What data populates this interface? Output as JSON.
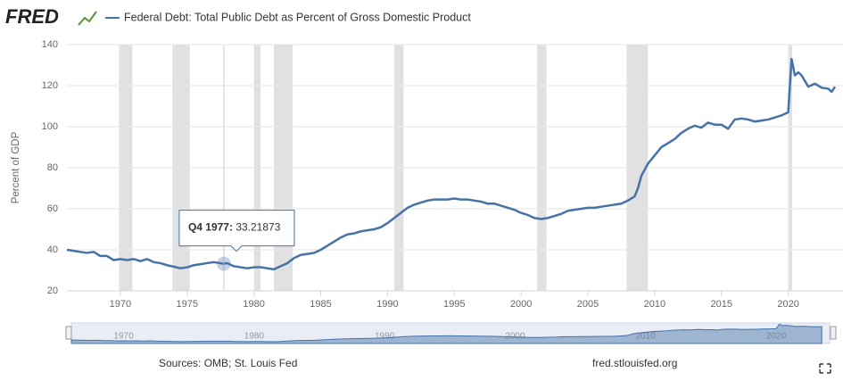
{
  "chart_data": {
    "type": "line",
    "logo": "FRED",
    "title": "Federal Debt: Total Public Debt as Percent of Gross Domestic Product",
    "y_label": "Percent of GDP",
    "sources": "Sources: OMB; St. Louis Fed",
    "site": "fred.stlouisfed.org",
    "xlim": [
      1966,
      2024.1
    ],
    "ylim": [
      20,
      140
    ],
    "yticks": [
      20,
      40,
      60,
      80,
      100,
      120,
      140
    ],
    "xticks": [
      1970,
      1975,
      1980,
      1985,
      1990,
      1995,
      2000,
      2005,
      2010,
      2015,
      2020
    ],
    "navigator_ticks": [
      1970,
      1980,
      1990,
      2000,
      2010,
      2020
    ],
    "grid": true,
    "recession_color": "#e1e1e1",
    "recessions": [
      [
        1969.9,
        1970.9
      ],
      [
        1973.9,
        1975.2
      ],
      [
        1980.0,
        1980.5
      ],
      [
        1981.5,
        1982.9
      ],
      [
        1990.5,
        1991.2
      ],
      [
        2001.2,
        2001.9
      ],
      [
        2007.9,
        2009.5
      ],
      [
        2020.0,
        2020.3
      ]
    ],
    "tooltip": {
      "label": "Q4 1977",
      "x": 1977.75,
      "value": 33.21873
    },
    "series": [
      {
        "name": "Federal Debt: Total Public Debt as Percent of Gross Domestic Product",
        "color": "#4572a7",
        "x": [
          1966,
          1966.5,
          1967,
          1967.5,
          1968,
          1968.5,
          1969,
          1969.5,
          1970,
          1970.5,
          1971,
          1971.5,
          1972,
          1972.5,
          1973,
          1973.5,
          1974,
          1974.5,
          1975,
          1975.5,
          1976,
          1976.5,
          1977,
          1977.75,
          1978,
          1978.5,
          1979,
          1979.5,
          1980,
          1980.5,
          1981,
          1981.5,
          1982,
          1982.5,
          1983,
          1983.5,
          1984,
          1984.5,
          1985,
          1985.5,
          1986,
          1986.5,
          1987,
          1987.5,
          1988,
          1988.5,
          1989,
          1989.5,
          1990,
          1990.5,
          1991,
          1991.5,
          1992,
          1992.5,
          1993,
          1993.5,
          1994,
          1994.5,
          1995,
          1995.5,
          1996,
          1996.5,
          1997,
          1997.5,
          1998,
          1998.5,
          1999,
          1999.5,
          2000,
          2000.5,
          2001,
          2001.5,
          2002,
          2002.5,
          2003,
          2003.5,
          2004,
          2004.5,
          2005,
          2005.5,
          2006,
          2006.5,
          2007,
          2007.5,
          2008,
          2008.5,
          2008.75,
          2009,
          2009.5,
          2010,
          2010.5,
          2011,
          2011.5,
          2012,
          2012.5,
          2013,
          2013.5,
          2014,
          2014.5,
          2015,
          2015.5,
          2016,
          2016.5,
          2017,
          2017.5,
          2018,
          2018.5,
          2019,
          2019.5,
          2020,
          2020.25,
          2020.5,
          2020.75,
          2021,
          2021.5,
          2022,
          2022.5,
          2023,
          2023.25,
          2023.5
        ],
        "values": [
          40,
          39.5,
          39,
          38.5,
          39,
          37,
          37,
          35,
          35.5,
          35,
          35.5,
          34.5,
          35.5,
          34,
          33.5,
          32.5,
          31.8,
          31,
          31.5,
          32.5,
          33,
          33.5,
          34,
          33.21873,
          33.5,
          32,
          31.5,
          31,
          31.5,
          31.5,
          31,
          30.5,
          32,
          33.5,
          36,
          37.5,
          38,
          38.5,
          40,
          42,
          44,
          46,
          47.5,
          48,
          49,
          49.5,
          50,
          51,
          53,
          55.5,
          58,
          60.5,
          62,
          63,
          64,
          64.5,
          64.5,
          64.5,
          65,
          64.5,
          64.5,
          64,
          63.5,
          62.5,
          62.5,
          61.5,
          60.5,
          59.5,
          58,
          57,
          55.5,
          55,
          55.5,
          56.5,
          57.5,
          59,
          59.5,
          60,
          60.5,
          60.5,
          61,
          61.5,
          62,
          62.5,
          64,
          66,
          70,
          76,
          82,
          86,
          90,
          92,
          94,
          97,
          99,
          100.5,
          99.5,
          102,
          101,
          101,
          99,
          103.5,
          104,
          103.5,
          102.5,
          103,
          103.5,
          104.5,
          105.5,
          107,
          133,
          125,
          126.5,
          125,
          119.5,
          121,
          119,
          118.5,
          117,
          119.5
        ]
      }
    ]
  }
}
